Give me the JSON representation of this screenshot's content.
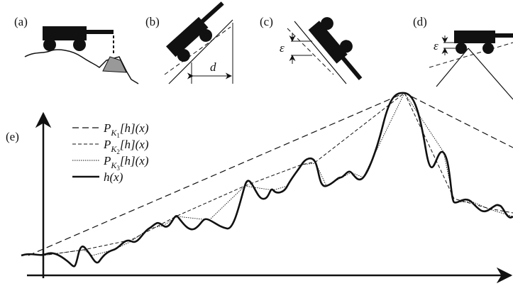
{
  "panels": [
    {
      "label": "(a)"
    },
    {
      "label": "(b)",
      "dimension": "d"
    },
    {
      "label": "(c)",
      "offset": "ε"
    },
    {
      "label": "(d)",
      "offset": "ε"
    },
    {
      "label": "(e)"
    }
  ],
  "legend": [
    {
      "symbol": "P",
      "sub": "K",
      "index": "1",
      "argument": "[h](x)"
    },
    {
      "symbol": "P",
      "sub": "K",
      "index": "2",
      "argument": "[h](x)"
    },
    {
      "symbol": "P",
      "sub": "K",
      "index": "3",
      "argument": "[h](x)"
    },
    {
      "label": "h(x)"
    }
  ]
}
